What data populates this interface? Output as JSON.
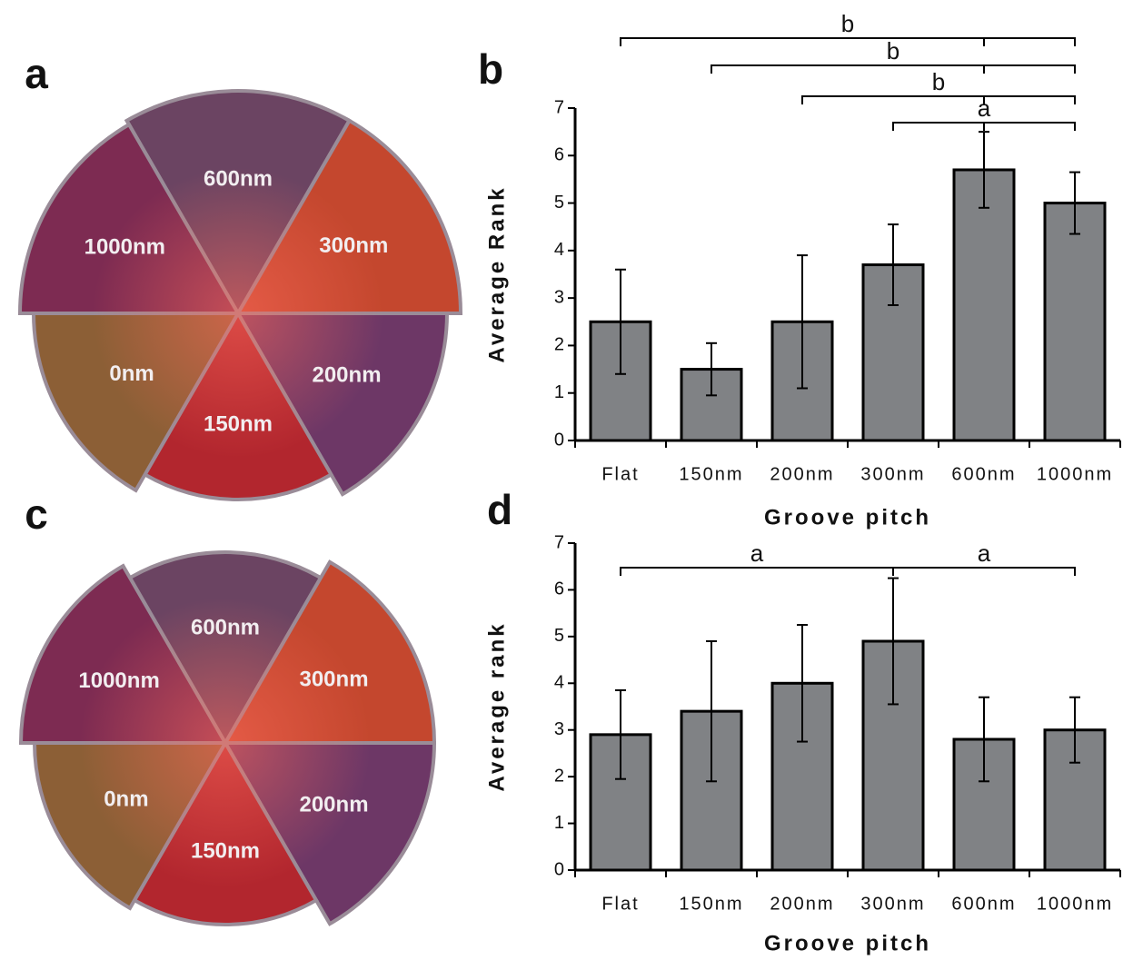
{
  "images": [
    {
      "panel_label": "a",
      "sectors": [
        "600nm",
        "300nm",
        "200nm",
        "150nm",
        "0nm",
        "1000nm"
      ]
    },
    {
      "panel_label": "c",
      "sectors": [
        "600nm",
        "300nm",
        "200nm",
        "150nm",
        "0nm",
        "1000nm"
      ]
    }
  ],
  "chart_data": [
    {
      "type": "bar",
      "panel_label": "b",
      "x_label": "Groove pitch",
      "y_label": "Average Rank",
      "categories": [
        "Flat",
        "150nm",
        "200nm",
        "300nm",
        "600nm",
        "1000nm"
      ],
      "values": [
        2.5,
        1.5,
        2.5,
        3.7,
        5.7,
        5.0
      ],
      "errors": [
        1.1,
        0.55,
        1.4,
        0.85,
        0.8,
        0.65
      ],
      "color": "#808285",
      "ylim": [
        0,
        7
      ],
      "yticks": [
        0,
        1,
        2,
        3,
        4,
        5,
        6,
        7
      ],
      "annotations": [
        "b",
        "b",
        "b",
        "a"
      ]
    },
    {
      "type": "bar",
      "panel_label": "d",
      "x_label": "Groove pitch",
      "y_label": "Average rank",
      "categories": [
        "Flat",
        "150nm",
        "200nm",
        "300nm",
        "600nm",
        "1000nm"
      ],
      "values": [
        2.9,
        3.4,
        4.0,
        4.9,
        2.8,
        3.0
      ],
      "errors": [
        0.95,
        1.5,
        1.25,
        1.35,
        0.9,
        0.7
      ],
      "color": "#808285",
      "ylim": [
        0,
        7
      ],
      "yticks": [
        0,
        1,
        2,
        3,
        4,
        5,
        6,
        7
      ],
      "annotations": [
        "a",
        "a"
      ]
    }
  ]
}
